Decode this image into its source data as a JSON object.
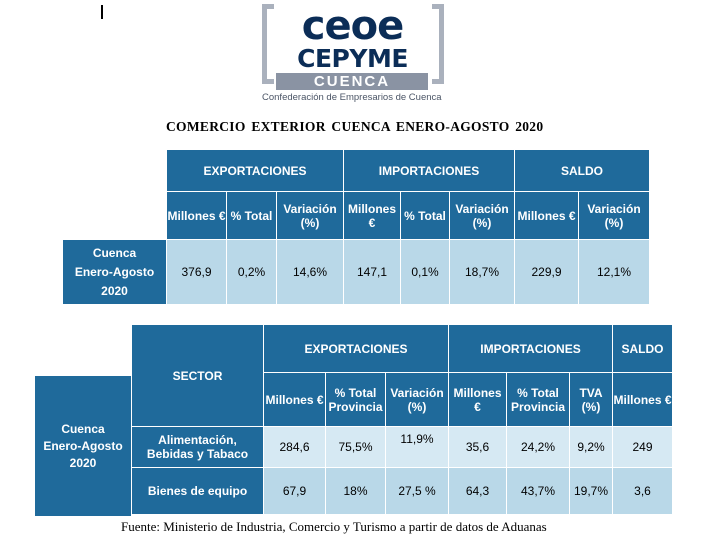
{
  "logo": {
    "line1": "ceoe",
    "line2": "CEPYME",
    "line3": "CUENCA",
    "tagline": "Confederación de Empresarios de Cuenca"
  },
  "title": "COMERCIO EXTERIOR CUENCA ENERO-AGOSTO 2020",
  "table1": {
    "groups": [
      "EXPORTACIONES",
      "IMPORTACIONES",
      "SALDO"
    ],
    "subheaders": [
      "Millones €",
      "% Total",
      "Variación (%)",
      "Millones €",
      "% Total",
      "Variación (%)",
      "Millones €",
      "Variación (%)"
    ],
    "row_label": [
      "Cuenca",
      "Enero-Agosto",
      "2020"
    ],
    "values": [
      "376,9",
      "0,2%",
      "14,6%",
      "147,1",
      "0,1%",
      "18,7%",
      "229,9",
      "12,1%"
    ]
  },
  "table2": {
    "sector_header": "SECTOR",
    "groups": [
      "EXPORTACIONES",
      "IMPORTACIONES",
      "SALDO"
    ],
    "subheaders": [
      "Millones €",
      "% Total Provincia",
      "Variación (%)",
      "Millones €",
      "% Total Provincia",
      "TVA (%)",
      "Millones €"
    ],
    "row_label": [
      "Cuenca",
      "Enero-Agosto",
      "2020"
    ],
    "rows": [
      {
        "sector": [
          "Alimentación,",
          "Bebidas y Tabaco"
        ],
        "values": [
          "284,6",
          "75,5%",
          "11,9%",
          "35,6",
          "24,2%",
          "9,2%",
          "249"
        ]
      },
      {
        "sector": [
          "Bienes de equipo"
        ],
        "values": [
          "67,9",
          "18%",
          "27,5 %",
          "64,3",
          "43,7%",
          "19,7%",
          "3,6"
        ]
      }
    ]
  },
  "footer": "Fuente: Ministerio de Industria, Comercio y Turismo a partir de datos de Aduanas",
  "colors": {
    "header_blue": "#1f6a9b",
    "cell_light": "#b9d8e8",
    "logo_navy": "#0b2d57"
  }
}
